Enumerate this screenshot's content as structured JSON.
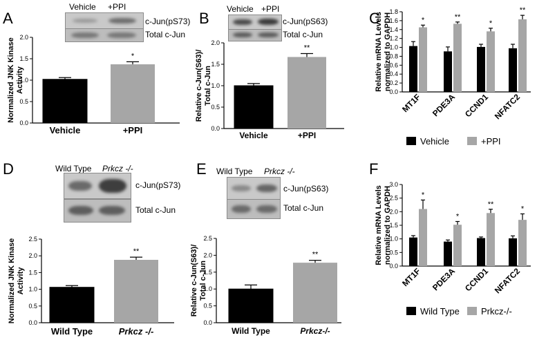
{
  "panels": {
    "A": {
      "letter": "A",
      "col1": "Vehicle",
      "col2": "+PPI",
      "blot_top": "c-Jun(pS73)",
      "blot_bottom": "Total c-Jun"
    },
    "B": {
      "letter": "B",
      "col1": "Vehicle",
      "col2": "+PPI",
      "blot_top": "c-Jun(pS63)",
      "blot_bottom": "Total c-Jun"
    },
    "C": {
      "letter": "C"
    },
    "D": {
      "letter": "D",
      "col1": "Wild Type",
      "col2": "Prkcz -/-",
      "blot_top": "c-Jun(pS73)",
      "blot_bottom": "Total c-Jun"
    },
    "E": {
      "letter": "E",
      "col1": "Wild Type",
      "col2": "Prkcz -/-",
      "blot_top": "c-Jun(pS63)",
      "blot_bottom": "Total c-Jun"
    },
    "F": {
      "letter": "F"
    }
  },
  "colors": {
    "black_bar": "#000000",
    "gray_bar": "#a6a6a6"
  },
  "chart_data": [
    {
      "id": "A",
      "type": "bar",
      "ylabel": "Normalized JNK Kinase Activity",
      "categories": [
        "Vehicle",
        "+PPI"
      ],
      "values": [
        1.02,
        1.37
      ],
      "errors": [
        0.04,
        0.06
      ],
      "significance": [
        "",
        "*"
      ],
      "ylim": [
        0,
        2.0
      ],
      "yticks": [
        "0.0",
        "0.5",
        "1.0",
        "1.5",
        "2.0"
      ]
    },
    {
      "id": "B",
      "type": "bar",
      "ylabel": "Relative c-Jun(S63)/ Total c-Jun",
      "categories": [
        "Vehicle",
        "+PPI"
      ],
      "values": [
        1.0,
        1.67
      ],
      "errors": [
        0.05,
        0.08
      ],
      "significance": [
        "",
        "**"
      ],
      "ylim": [
        0,
        2.0
      ],
      "yticks": [
        "0.0",
        "0.5",
        "1.0",
        "1.5",
        "2.0"
      ]
    },
    {
      "id": "C",
      "type": "bar",
      "ylabel": "Relative mRNA Levels normalized to GAPDH",
      "categories": [
        "MT1F",
        "PDE3A",
        "CCND1",
        "NFATC2"
      ],
      "series": [
        {
          "name": "Vehicle",
          "values": [
            1.03,
            0.91,
            1.01,
            0.98
          ],
          "errors": [
            0.1,
            0.1,
            0.06,
            0.09
          ]
        },
        {
          "name": "+PPI",
          "values": [
            1.45,
            1.53,
            1.36,
            1.63
          ],
          "errors": [
            0.05,
            0.04,
            0.07,
            0.09
          ]
        }
      ],
      "significance": [
        "*",
        "**",
        "*",
        "**"
      ],
      "ylim": [
        0,
        1.8
      ],
      "yticks": [
        "0.0",
        "0.2",
        "0.4",
        "0.6",
        "0.8",
        "1.0",
        "1.2",
        "1.4",
        "1.6",
        "1.8"
      ]
    },
    {
      "id": "D",
      "type": "bar",
      "ylabel": "Normalized JNK Kinase Activity",
      "categories": [
        "Wild Type",
        "Prkcz -/-"
      ],
      "values": [
        1.06,
        1.88
      ],
      "errors": [
        0.05,
        0.08
      ],
      "significance": [
        "",
        "**"
      ],
      "ylim": [
        0,
        2.5
      ],
      "yticks": [
        "0.0",
        "0.5",
        "1.0",
        "1.5",
        "2.0",
        "2.5"
      ]
    },
    {
      "id": "E",
      "type": "bar",
      "ylabel": "Relative c-Jun(S63)/ Total c-Jun",
      "categories": [
        "Wild Type",
        "Prkcz-/-"
      ],
      "values": [
        1.0,
        1.78
      ],
      "errors": [
        0.12,
        0.07
      ],
      "significance": [
        "",
        "**"
      ],
      "ylim": [
        0,
        2.5
      ],
      "yticks": [
        "0.0",
        "0.5",
        "1.0",
        "1.5",
        "2.0",
        "2.5"
      ]
    },
    {
      "id": "F",
      "type": "bar",
      "ylabel": "Relative mRNA Levels normalized to GAPDH",
      "categories": [
        "MT1F",
        "PDE3A",
        "CCND1",
        "NFATC2"
      ],
      "series": [
        {
          "name": "Wild Type",
          "values": [
            1.05,
            0.9,
            1.03,
            1.02
          ],
          "errors": [
            0.07,
            0.06,
            0.04,
            0.09
          ]
        },
        {
          "name": "Prkcz-/-",
          "values": [
            2.1,
            1.52,
            1.95,
            1.7
          ],
          "errors": [
            0.33,
            0.12,
            0.14,
            0.22
          ]
        }
      ],
      "significance": [
        "*",
        "*",
        "**",
        "*"
      ],
      "ylim": [
        0,
        3.0
      ],
      "yticks": [
        "0.0",
        "0.5",
        "1.0",
        "1.5",
        "2.0",
        "2.5",
        "3.0"
      ]
    }
  ]
}
